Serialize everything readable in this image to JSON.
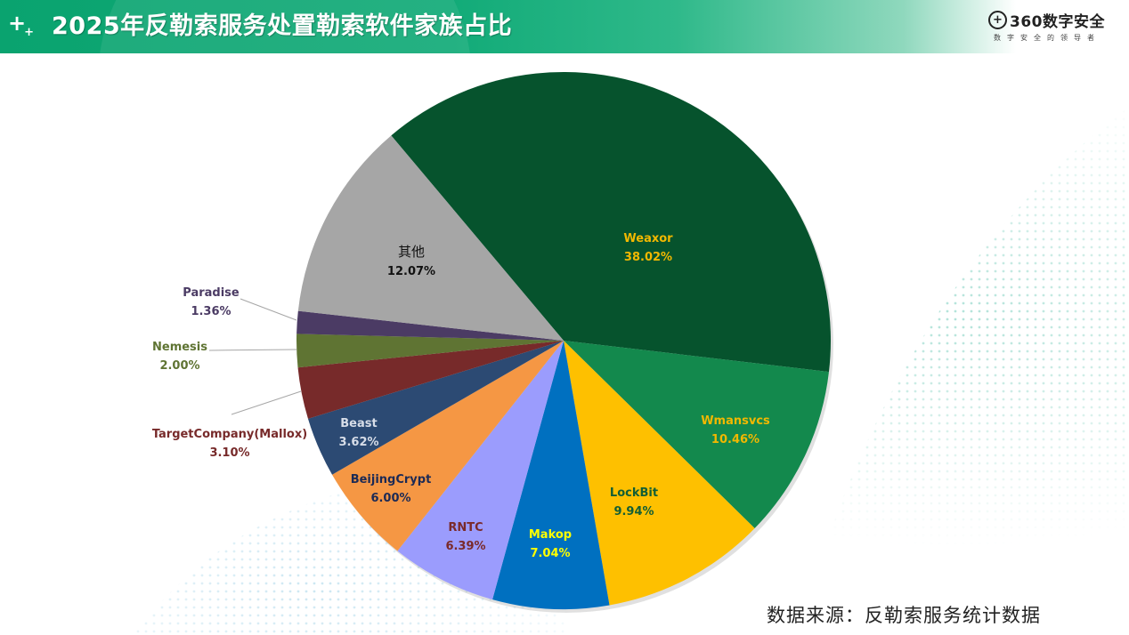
{
  "header": {
    "title": "2025年反勒索服务处置勒索软件家族占比",
    "plus_icon": "plus-icon"
  },
  "logo": {
    "icon": "360-logo-icon",
    "name": "360数字安全",
    "tagline": "数字安全的领导者"
  },
  "footer": {
    "source": "数据来源：反勒索服务统计数据"
  },
  "chart_data": {
    "type": "pie",
    "title": "2025年反勒索服务处置勒索软件家族占比",
    "start_angle_deg": -130.2,
    "direction": "clockwise",
    "slices": [
      {
        "label": "Weaxor",
        "value": 38.02,
        "display": "38.02%",
        "color": "#06532d",
        "label_color": "#f2b800"
      },
      {
        "label": "Wmansvcs",
        "value": 10.46,
        "display": "10.46%",
        "color": "#13894d",
        "label_color": "#f2b800"
      },
      {
        "label": "LockBit",
        "value": 9.94,
        "display": "9.94%",
        "color": "#fec000",
        "label_color": "#125e35"
      },
      {
        "label": "Makop",
        "value": 7.04,
        "display": "7.04%",
        "color": "#0070c0",
        "label_color": "#ffff00"
      },
      {
        "label": "RNTC",
        "value": 6.39,
        "display": "6.39%",
        "color": "#9b9cfd",
        "label_color": "#7a2a2a"
      },
      {
        "label": "BeijingCrypt",
        "value": 6.0,
        "display": "6.00%",
        "color": "#f59744",
        "label_color": "#1c2a55"
      },
      {
        "label": "Beast",
        "value": 3.62,
        "display": "3.62%",
        "color": "#2c4a73",
        "label_color": "#d7dde8"
      },
      {
        "label": "TargetCompany(Mallox)",
        "value": 3.1,
        "display": "3.10%",
        "color": "#772a2a",
        "label_color": "#772a2a"
      },
      {
        "label": "Nemesis",
        "value": 2.0,
        "display": "2.00%",
        "color": "#5f7433",
        "label_color": "#5f7433"
      },
      {
        "label": "Paradise",
        "value": 1.36,
        "display": "1.36%",
        "color": "#4b3b64",
        "label_color": "#4b3b64"
      },
      {
        "label": "其他",
        "value": 12.07,
        "display": "12.07%",
        "color": "#a6a6a6",
        "label_color": "#111111"
      }
    ],
    "legend": "none (data labels on/near slices)",
    "source": "反勒索服务统计数据"
  }
}
